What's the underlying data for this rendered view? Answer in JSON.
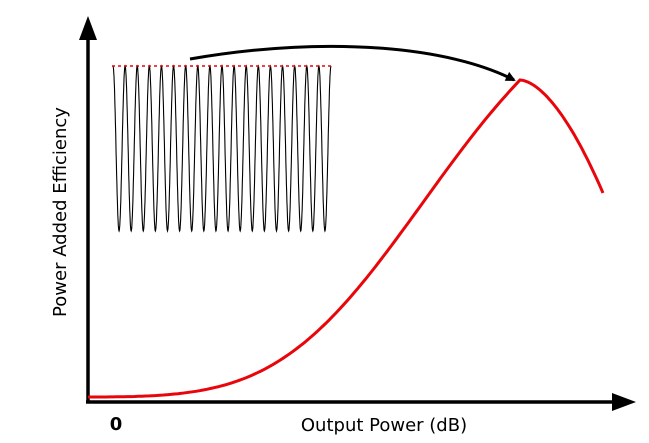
{
  "diagram": {
    "x_axis_label": "Output Power (dB)",
    "y_axis_label": "Power Added Efficiency",
    "origin_label": "0",
    "colors": {
      "efficiency_curve": "#e8060b",
      "signal_waveform": "#000000",
      "peak_envelope_line": "#e8060b",
      "axes": "#000000",
      "arrow": "#000000"
    }
  }
}
